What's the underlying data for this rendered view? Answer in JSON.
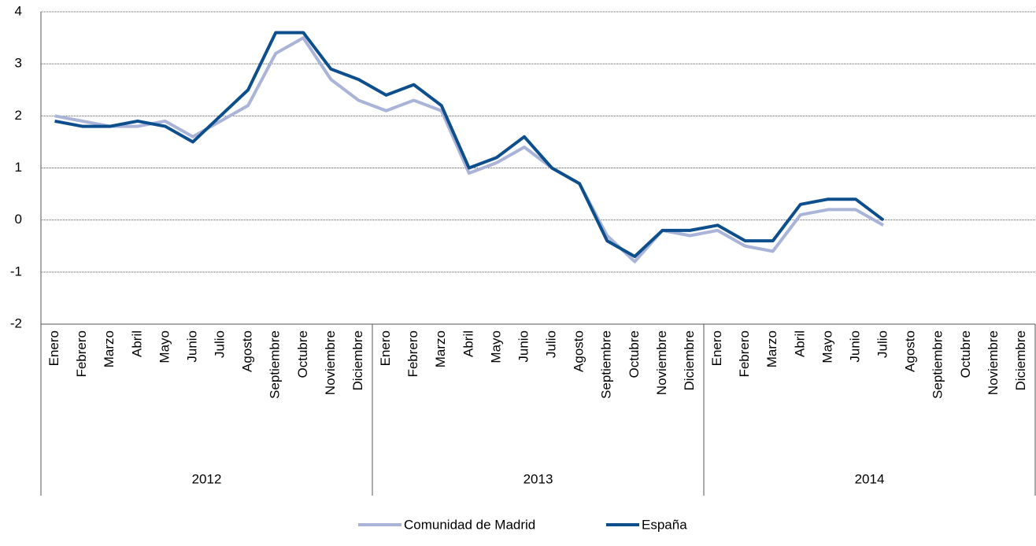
{
  "chart_data": {
    "type": "line",
    "categories": [
      "Enero",
      "Febrero",
      "Marzo",
      "Abril",
      "Mayo",
      "Junio",
      "Julio",
      "Agosto",
      "Septiembre",
      "Octubre",
      "Noviembre",
      "Diciembre",
      "Enero",
      "Febrero",
      "Marzo",
      "Abril",
      "Mayo",
      "Junio",
      "Julio",
      "Agosto",
      "Septiembre",
      "Octubre",
      "Noviembre",
      "Diciembre",
      "Enero",
      "Febrero",
      "Marzo",
      "Abril",
      "Mayo",
      "Junio",
      "Julio",
      "Agosto",
      "Septiembre",
      "Octubre",
      "Noviembre",
      "Diciembre"
    ],
    "groups": [
      "2012",
      "2013",
      "2014"
    ],
    "series": [
      {
        "name": "Comunidad de Madrid",
        "color": "#a9b4d8",
        "values": [
          2.0,
          1.9,
          1.8,
          1.8,
          1.9,
          1.6,
          1.9,
          2.2,
          3.2,
          3.5,
          2.7,
          2.3,
          2.1,
          2.3,
          2.1,
          0.9,
          1.1,
          1.4,
          1.0,
          0.7,
          -0.3,
          -0.8,
          -0.2,
          -0.3,
          -0.2,
          -0.5,
          -0.6,
          0.1,
          0.2,
          0.2,
          -0.1,
          null,
          null,
          null,
          null,
          null
        ]
      },
      {
        "name": "España",
        "color": "#0d4e8c",
        "values": [
          1.9,
          1.8,
          1.8,
          1.9,
          1.8,
          1.5,
          2.0,
          2.5,
          3.6,
          3.6,
          2.9,
          2.7,
          2.4,
          2.6,
          2.2,
          1.0,
          1.2,
          1.6,
          1.0,
          0.7,
          -0.4,
          -0.7,
          -0.2,
          -0.2,
          -0.1,
          -0.4,
          -0.4,
          0.3,
          0.4,
          0.4,
          0.0,
          null,
          null,
          null,
          null,
          null
        ]
      }
    ],
    "ylim": [
      -2,
      4
    ],
    "yticks": [
      -2,
      -1,
      0,
      1,
      2,
      3,
      4
    ],
    "grid": true
  }
}
